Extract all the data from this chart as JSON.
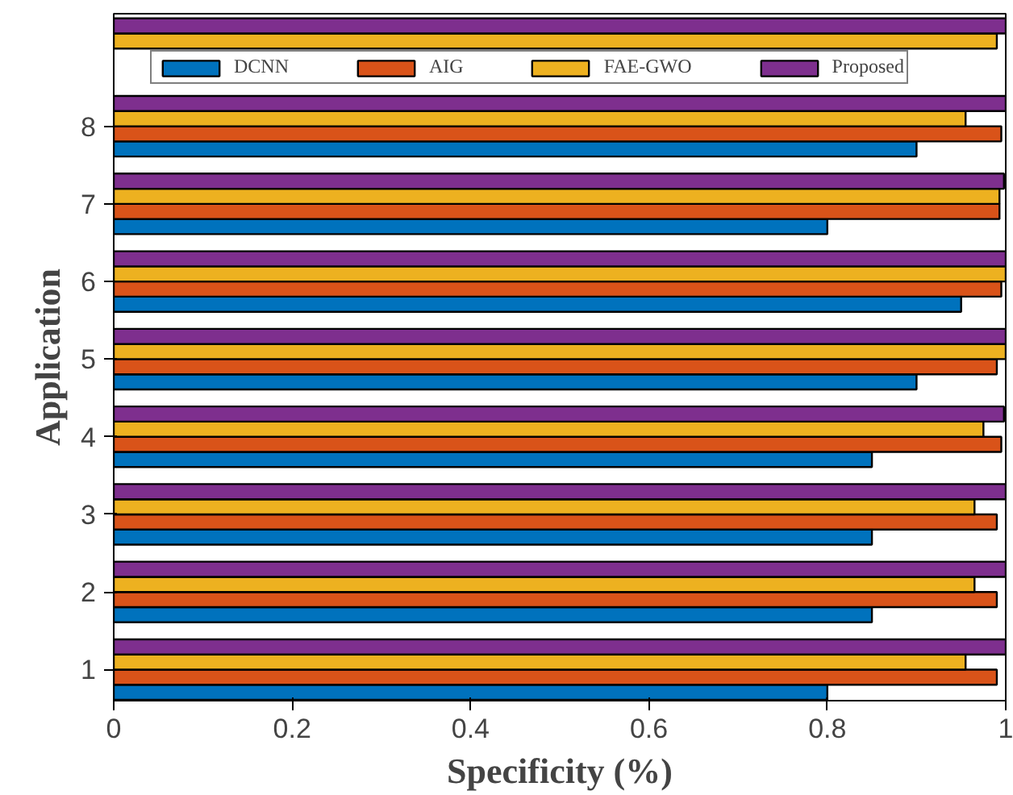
{
  "chart_data": {
    "type": "bar",
    "orientation": "horizontal",
    "xlabel": "Specificity (%)",
    "ylabel": "Application",
    "categories": [
      null,
      "8",
      "7",
      "6",
      "5",
      "4",
      "3",
      "2",
      "1"
    ],
    "series": [
      {
        "name": "DCNN",
        "color": "#0072bd",
        "values": [
          null,
          0.9,
          0.8,
          0.95,
          0.9,
          0.85,
          0.85,
          0.85,
          0.8
        ]
      },
      {
        "name": "AIG",
        "color": "#d95319",
        "values": [
          null,
          0.995,
          0.993,
          0.995,
          0.99,
          0.995,
          0.99,
          0.99,
          0.99
        ]
      },
      {
        "name": "FAE-GWO",
        "color": "#edb120",
        "values": [
          0.99,
          0.955,
          0.993,
          1.0,
          1.0,
          0.975,
          0.965,
          0.965,
          0.955
        ]
      },
      {
        "name": "Proposed",
        "color": "#7e2f8e",
        "values": [
          1.0,
          1.0,
          0.998,
          1.0,
          1.0,
          0.998,
          1.0,
          1.0,
          1.0
        ]
      }
    ],
    "xlim": [
      0,
      1
    ],
    "xticks": [
      0,
      0.2,
      0.4,
      0.6,
      0.8,
      1
    ],
    "grid": false,
    "legend": "top"
  }
}
